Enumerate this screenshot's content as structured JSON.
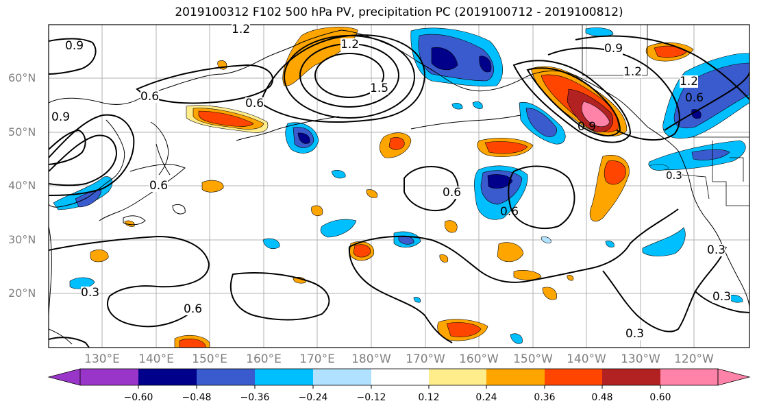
{
  "title": "2019100312 F102 500 hPa PV, precipitation PC (2019100712 - 2019100812)",
  "lat_labels": [
    "60°N",
    "50°N",
    "40°N",
    "30°N",
    "20°N"
  ],
  "lon_labels": [
    "130°E",
    "140°E",
    "150°E",
    "160°E",
    "170°E",
    "180°W",
    "170°W",
    "160°W",
    "150°W",
    "140°W",
    "130°W",
    "120°W"
  ],
  "colorbar": {
    "ticks": [
      "−0.60",
      "−0.48",
      "−0.36",
      "−0.24",
      "−0.12",
      "0.12",
      "0.24",
      "0.36",
      "0.48",
      "0.60"
    ],
    "colors": [
      "#9a35c9",
      "#00008b",
      "#3a5bcd",
      "#00bfff",
      "#b0e2ff",
      "#ffffff",
      "#ffec8b",
      "#ffa500",
      "#ff4500",
      "#b22222",
      "#ff83a8"
    ]
  },
  "contour_labels": [
    "1.2",
    "0.9",
    "0.6",
    "1.5",
    "0.3"
  ]
}
